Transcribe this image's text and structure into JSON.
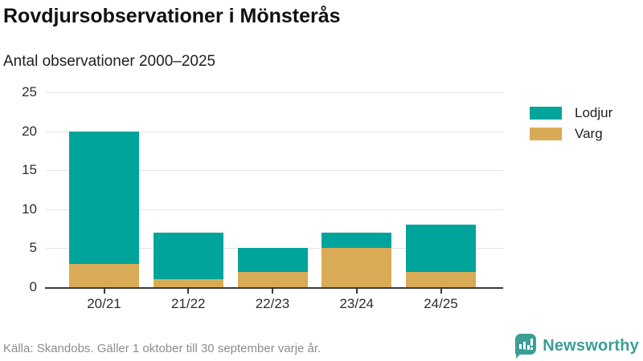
{
  "chart_data": {
    "type": "bar",
    "stacked": true,
    "title": "Rovdjursobservationer i Mönsterås",
    "subtitle": "Antal observationer 2000–2025",
    "categories": [
      "20/21",
      "21/22",
      "22/23",
      "23/24",
      "24/25"
    ],
    "series": [
      {
        "name": "Lodjur",
        "color": "#00a49b",
        "values": [
          17,
          6,
          3,
          2,
          6
        ]
      },
      {
        "name": "Varg",
        "color": "#d9ab57",
        "values": [
          3,
          1,
          2,
          5,
          2
        ]
      }
    ],
    "xlabel": "",
    "ylabel": "",
    "ylim": [
      0,
      25
    ],
    "yticks": [
      0,
      5,
      10,
      15,
      20,
      25
    ],
    "grid": true,
    "legend_position": "right"
  },
  "footer": {
    "source": "Källa: Skandobs. Gäller 1 oktober till 30 september varje år.",
    "brand": "Newsworthy",
    "brand_color": "#3b9e97"
  }
}
